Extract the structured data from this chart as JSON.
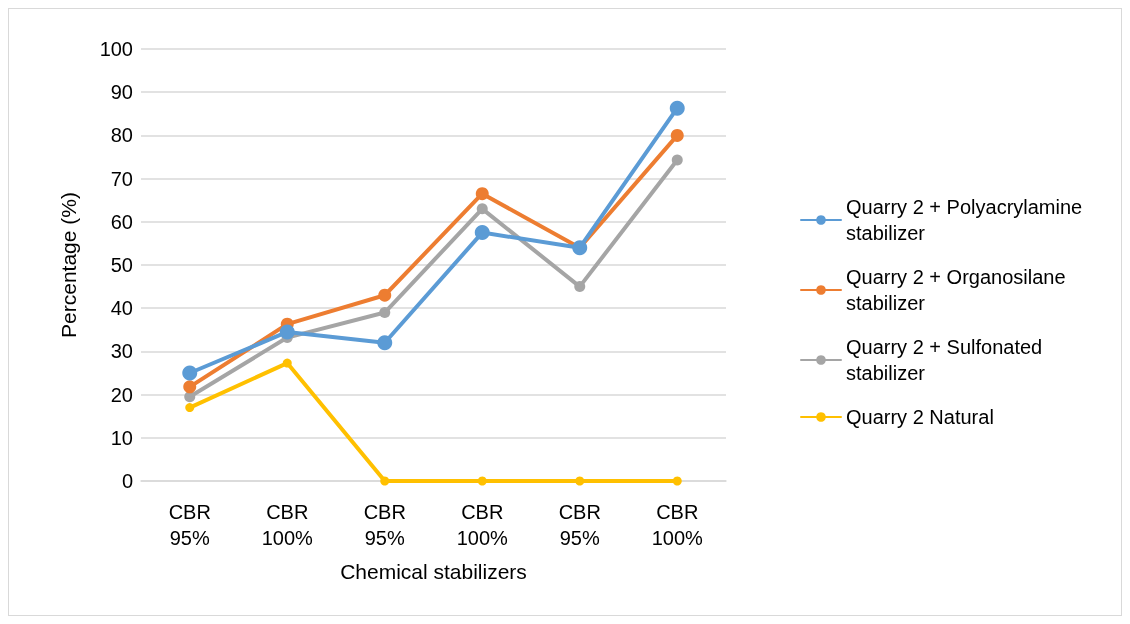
{
  "chart_data": {
    "type": "line",
    "xlabel": "Chemical stabilizers",
    "ylabel": "Percentage (%)",
    "categories": [
      "CBR\n95%",
      "CBR\n100%",
      "CBR\n95%",
      "CBR\n100%",
      "CBR\n95%",
      "CBR\n100%"
    ],
    "series": [
      {
        "name": "Quarry 2 + Polyacrylamine stabilizer",
        "color": "#5b9bd5",
        "values": [
          25,
          34.5,
          32,
          57.5,
          54,
          86.3
        ]
      },
      {
        "name": "Quarry 2 + Organosilane stabilizer",
        "color": "#ed7d31",
        "values": [
          21.8,
          36.3,
          43,
          66.5,
          54,
          80
        ]
      },
      {
        "name": "Quarry 2 + Sulfonated stabilizer",
        "color": "#a5a5a5",
        "values": [
          19.5,
          33.2,
          39,
          63,
          45,
          74.3
        ]
      },
      {
        "name": "Quarry 2 Natural",
        "color": "#ffc000",
        "values": [
          17,
          27.3,
          0,
          0,
          0,
          0
        ]
      }
    ],
    "ylim": [
      0,
      100
    ],
    "yticks": [
      0,
      10,
      20,
      30,
      40,
      50,
      60,
      70,
      80,
      90,
      100
    ],
    "grid": "y",
    "legend": "right",
    "marker": "circle",
    "line_style": "solid"
  }
}
